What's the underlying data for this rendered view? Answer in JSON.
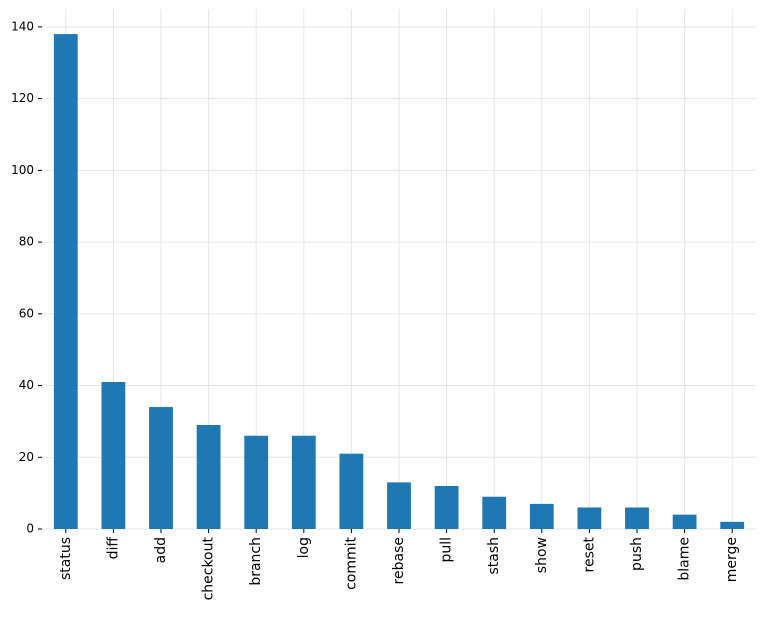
{
  "chart_data": {
    "type": "bar",
    "categories": [
      "status",
      "diff",
      "add",
      "checkout",
      "branch",
      "log",
      "commit",
      "rebase",
      "pull",
      "stash",
      "show",
      "reset",
      "push",
      "blame",
      "merge"
    ],
    "values": [
      138,
      41,
      34,
      29,
      26,
      26,
      21,
      13,
      12,
      9,
      7,
      6,
      6,
      4,
      2
    ],
    "color": "#1f77b4",
    "ylim": [
      0,
      145
    ],
    "yticks": [
      0,
      20,
      40,
      60,
      80,
      100,
      120,
      140
    ],
    "grid": true
  }
}
